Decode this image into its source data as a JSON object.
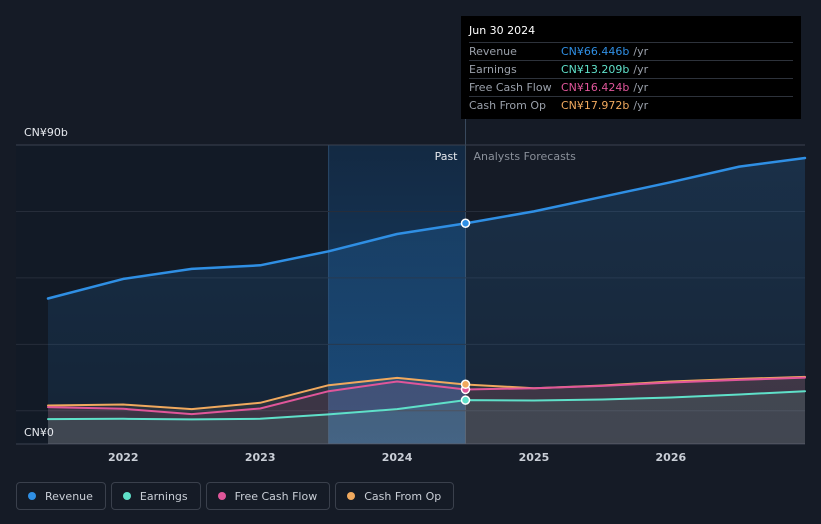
{
  "tooltip": {
    "date": "Jun 30 2024",
    "unit": "/yr",
    "rows": [
      {
        "label": "Revenue",
        "value": "CN¥66.446b",
        "color": "#2f8fe4"
      },
      {
        "label": "Earnings",
        "value": "CN¥13.209b",
        "color": "#5fe0c9"
      },
      {
        "label": "Free Cash Flow",
        "value": "CN¥16.424b",
        "color": "#e0569a"
      },
      {
        "label": "Cash From Op",
        "value": "CN¥17.972b",
        "color": "#f0a95e"
      }
    ]
  },
  "legend": [
    {
      "label": "Revenue",
      "color": "#2f8fe4"
    },
    {
      "label": "Earnings",
      "color": "#5fe0c9"
    },
    {
      "label": "Free Cash Flow",
      "color": "#e0569a"
    },
    {
      "label": "Cash From Op",
      "color": "#f0a95e"
    }
  ],
  "chart_data": {
    "type": "line",
    "y_top_label": "CN¥90b",
    "y_bottom_label": "CN¥0",
    "ylim": [
      0,
      90
    ],
    "xlim": [
      2021.45,
      2026.98
    ],
    "past_label": "Past",
    "forecast_label": "Analysts Forecasts",
    "forecast_start": 2024.5,
    "highlight_start": 2023.5,
    "x_ticks": [
      {
        "value": 2022,
        "label": "2022"
      },
      {
        "value": 2023,
        "label": "2023"
      },
      {
        "value": 2024,
        "label": "2024"
      },
      {
        "value": 2025,
        "label": "2025"
      },
      {
        "value": 2026,
        "label": "2026"
      }
    ],
    "series": [
      {
        "name": "Revenue",
        "color": "#2f8fe4",
        "x": [
          2021.45,
          2022.0,
          2022.5,
          2023.0,
          2023.5,
          2024.0,
          2024.5,
          2025.0,
          2025.5,
          2026.0,
          2026.5,
          2026.98
        ],
        "y": [
          43.8,
          49.7,
          52.7,
          53.8,
          58.0,
          63.2,
          66.4,
          70.0,
          74.4,
          78.8,
          83.5,
          86.1
        ]
      },
      {
        "name": "Earnings",
        "color": "#5fe0c9",
        "x": [
          2021.45,
          2022.0,
          2022.5,
          2023.0,
          2023.5,
          2024.0,
          2024.5,
          2025.0,
          2025.5,
          2026.0,
          2026.5,
          2026.98
        ],
        "y": [
          7.5,
          7.6,
          7.4,
          7.6,
          8.9,
          10.5,
          13.2,
          13.1,
          13.4,
          14.0,
          14.9,
          15.9
        ]
      },
      {
        "name": "Free Cash Flow",
        "color": "#e0569a",
        "x": [
          2021.45,
          2022.0,
          2022.5,
          2023.0,
          2023.5,
          2024.0,
          2024.5,
          2025.0,
          2025.5,
          2026.0,
          2026.5,
          2026.98
        ],
        "y": [
          11.1,
          10.6,
          9.0,
          10.7,
          15.9,
          18.8,
          16.4,
          16.8,
          17.5,
          18.5,
          19.3,
          20.0
        ]
      },
      {
        "name": "Cash From Op",
        "color": "#f0a95e",
        "x": [
          2021.45,
          2022.0,
          2022.5,
          2023.0,
          2023.5,
          2024.0,
          2024.5,
          2025.0,
          2025.5,
          2026.0,
          2026.5,
          2026.98
        ],
        "y": [
          11.6,
          11.9,
          10.5,
          12.4,
          17.7,
          19.9,
          17.9,
          16.8,
          17.6,
          18.8,
          19.6,
          20.2
        ]
      }
    ],
    "highlight_points": [
      {
        "series": "Revenue",
        "x": 2024.5,
        "y": 66.446
      },
      {
        "series": "Earnings",
        "x": 2024.5,
        "y": 13.209
      },
      {
        "series": "Free Cash Flow",
        "x": 2024.5,
        "y": 16.424
      },
      {
        "series": "Cash From Op",
        "x": 2024.5,
        "y": 17.972
      }
    ]
  }
}
